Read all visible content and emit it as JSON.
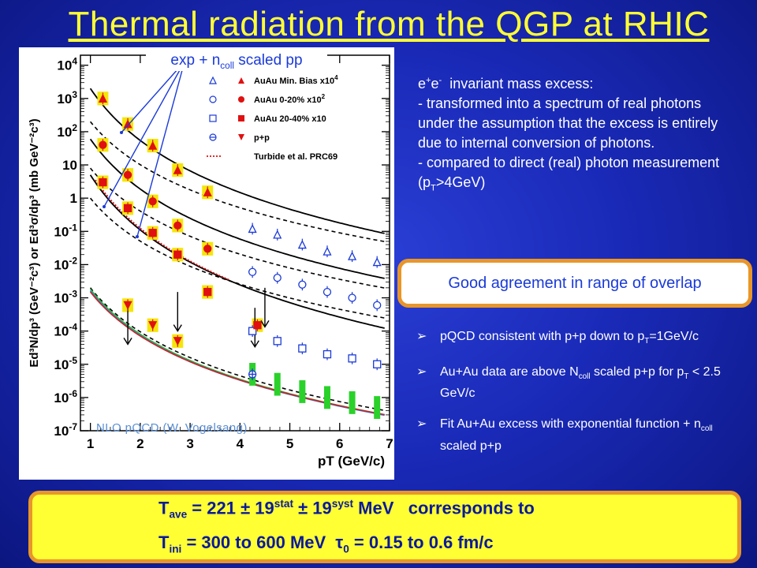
{
  "title": "Thermal radiation from the QGP at RHIC",
  "callout": {
    "prefix": "exp + n",
    "sub": "coll",
    "suffix": " scaled pp"
  },
  "nlo_label": "NLO pQCD (W. Vogelsang)",
  "description": {
    "line1": {
      "a": "e",
      "sup_plus": "+",
      "b": "e",
      "sup_minus": "-",
      "c": "  invariant mass excess:"
    },
    "para1": "- transformed into a spectrum of real photons under the assumption that the excess is entirely due to internal conversion of photons.",
    "para2_a": "- compared to direct (real) photon measurement (p",
    "para2_sub": "T",
    "para2_b": ">4GeV)"
  },
  "agreement": "Good agreement in range of overlap",
  "bullets": {
    "b1_a": "pQCD consistent with p+p down to p",
    "b1_sub": "T",
    "b1_b": "=1GeV/c",
    "b2_a": "Au+Au data are above N",
    "b2_sub": "coll",
    "b2_b": " scaled p+p for p",
    "b2_sub2": "T",
    "b2_c": " < 2.5 GeV/c",
    "b3_a": "Fit Au+Au excess with exponential function + n",
    "b3_sub": "coll",
    "b3_b": " scaled p+p"
  },
  "result": {
    "l1_a": "T",
    "l1_sub": "ave",
    "l1_b": " = 221 ± 19",
    "l1_sup1": "stat",
    "l1_c": " ± 19",
    "l1_sup2": "syst",
    "l1_d": " MeV   corresponds to",
    "l2_a": "T",
    "l2_sub": "ini",
    "l2_b": " = 300 to 600 MeV  τ",
    "l2_sub2": "0",
    "l2_c": " = 0.15 to 0.6 fm/c"
  },
  "colors": {
    "title": "#ffff33",
    "accent_orange": "#e8962a",
    "result_bg": "#ffff33",
    "blue_text": "#1a3ad8",
    "red": "#e01010",
    "navy": "#1a3ad8",
    "black": "#000000"
  },
  "chart_data": {
    "type": "scatter",
    "xlabel": "p_T (GeV/c)",
    "ylabel": "Ed³N/dp³ (GeV⁻²c³) or Ed³σ/dp³ (mb GeV⁻²c³)",
    "xscale": "linear",
    "yscale": "log",
    "xlim": [
      0.8,
      7
    ],
    "ylim": [
      1e-07,
      20000.0
    ],
    "x_ticks": [
      "1",
      "2",
      "3",
      "4",
      "5",
      "6",
      "7"
    ],
    "y_ticks": [
      "10^{-7}",
      "10^{-6}",
      "10^{-5}",
      "10^{-4}",
      "10^{-3}",
      "10^{-2}",
      "10^{-1}",
      "1",
      "10",
      "10^{2}",
      "10^{3}",
      "10^{4}"
    ],
    "legend_position": "top-right",
    "series": [
      {
        "name": "AuAu Min. Bias x10^4",
        "marker": "triangle",
        "filled": false,
        "color": "#1a3ad8",
        "x": [
          4.25,
          4.75,
          5.25,
          5.75,
          6.25,
          6.75
        ],
        "y": [
          0.12,
          0.08,
          0.04,
          0.025,
          0.018,
          0.012
        ]
      },
      {
        "name": "AuAu 0-20% x10^2",
        "marker": "circle",
        "filled": false,
        "color": "#1a3ad8",
        "x": [
          4.25,
          4.75,
          5.25,
          5.75,
          6.25,
          6.75
        ],
        "y": [
          0.006,
          0.004,
          0.0025,
          0.0015,
          0.001,
          0.0006
        ]
      },
      {
        "name": "AuAu 20-40% x10",
        "marker": "square",
        "filled": false,
        "color": "#1a3ad8",
        "x": [
          4.25,
          4.75,
          5.25,
          5.75,
          6.25,
          6.75
        ],
        "y": [
          0.0001,
          5e-05,
          3e-05,
          2e-05,
          1.5e-05,
          1e-05
        ]
      },
      {
        "name": "p+p",
        "marker": "crossed-circle",
        "filled": false,
        "color": "#1a3ad8",
        "x": [
          4.25
        ],
        "y": [
          5e-06
        ]
      },
      {
        "name": "AuAu Min. Bias x10^4 (ee)",
        "marker": "triangle",
        "filled": true,
        "color": "#e01010",
        "x": [
          1.25,
          1.75,
          2.25,
          2.75,
          3.35
        ],
        "y": [
          1000,
          170,
          38,
          7,
          1.5
        ]
      },
      {
        "name": "AuAu 0-20% x10^2 (ee)",
        "marker": "circle",
        "filled": true,
        "color": "#e01010",
        "x": [
          1.25,
          1.75,
          2.25,
          2.75,
          3.35
        ],
        "y": [
          40,
          5,
          0.8,
          0.15,
          0.03
        ]
      },
      {
        "name": "AuAu 20-40% x10 (ee)",
        "marker": "square",
        "filled": true,
        "color": "#e01010",
        "x": [
          1.25,
          1.75,
          2.25,
          2.75,
          3.35,
          4.35
        ],
        "y": [
          3,
          0.5,
          0.09,
          0.02,
          0.0015,
          0.00015
        ]
      },
      {
        "name": "p+p (ee)",
        "marker": "downtriangle",
        "filled": true,
        "color": "#e01010",
        "x": [
          1.75,
          2.25,
          2.75
        ],
        "y": [
          0.0006,
          0.00015,
          5e-05
        ]
      }
    ],
    "legend_entries": [
      {
        "label": "AuAu Min. Bias x10",
        "sup": "4"
      },
      {
        "label": "AuAu 0-20% x10",
        "sup": "2"
      },
      {
        "label": "AuAu 20-40% x10",
        "sup": ""
      },
      {
        "label": "p+p",
        "sup": ""
      },
      {
        "label": "Turbide et al. PRC69",
        "sup": ""
      }
    ]
  }
}
